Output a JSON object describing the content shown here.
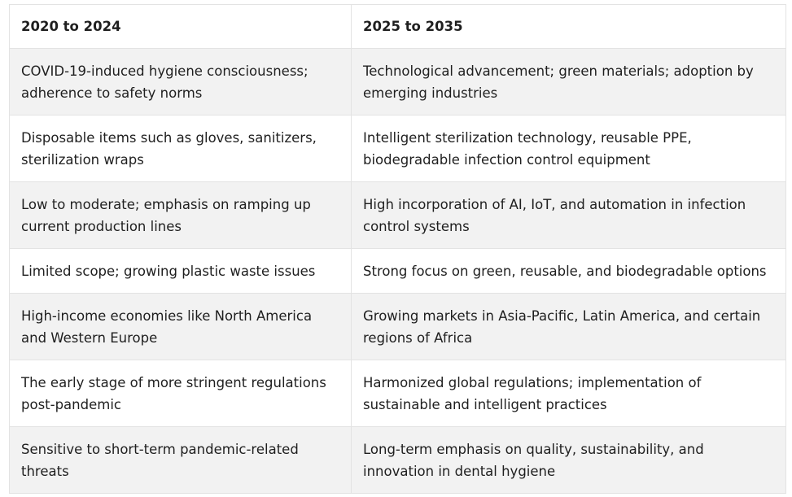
{
  "table": {
    "headers": [
      "2020 to 2024",
      "2025 to 2035"
    ],
    "rows": [
      [
        "COVID-19-induced hygiene consciousness; adherence to safety norms",
        "Technological advancement; green materials; adoption by emerging industries"
      ],
      [
        "Disposable items such as gloves, sanitizers, sterilization wraps",
        "Intelligent sterilization technology, reusable PPE, biodegradable infection control equipment"
      ],
      [
        "Low to moderate; emphasis on ramping up current production lines",
        "High incorporation of AI, IoT, and automation in infection control systems"
      ],
      [
        "Limited scope; growing plastic waste issues",
        "Strong focus on green, reusable, and biodegradable options"
      ],
      [
        "High-income economies like North America and Western Europe",
        "Growing markets in Asia-Pacific, Latin America, and certain regions of Africa"
      ],
      [
        "The early stage of more stringent regulations post-pandemic",
        "Harmonized global regulations; implementation of sustainable and intelligent practices"
      ],
      [
        "Sensitive to short-term pandemic-related threats",
        "Long-term emphasis on quality, sustainability, and innovation in dental hygiene"
      ]
    ]
  },
  "colors": {
    "row_shade": "#f2f2f2",
    "border": "#e3e3e3",
    "text": "#1f1f1f"
  }
}
